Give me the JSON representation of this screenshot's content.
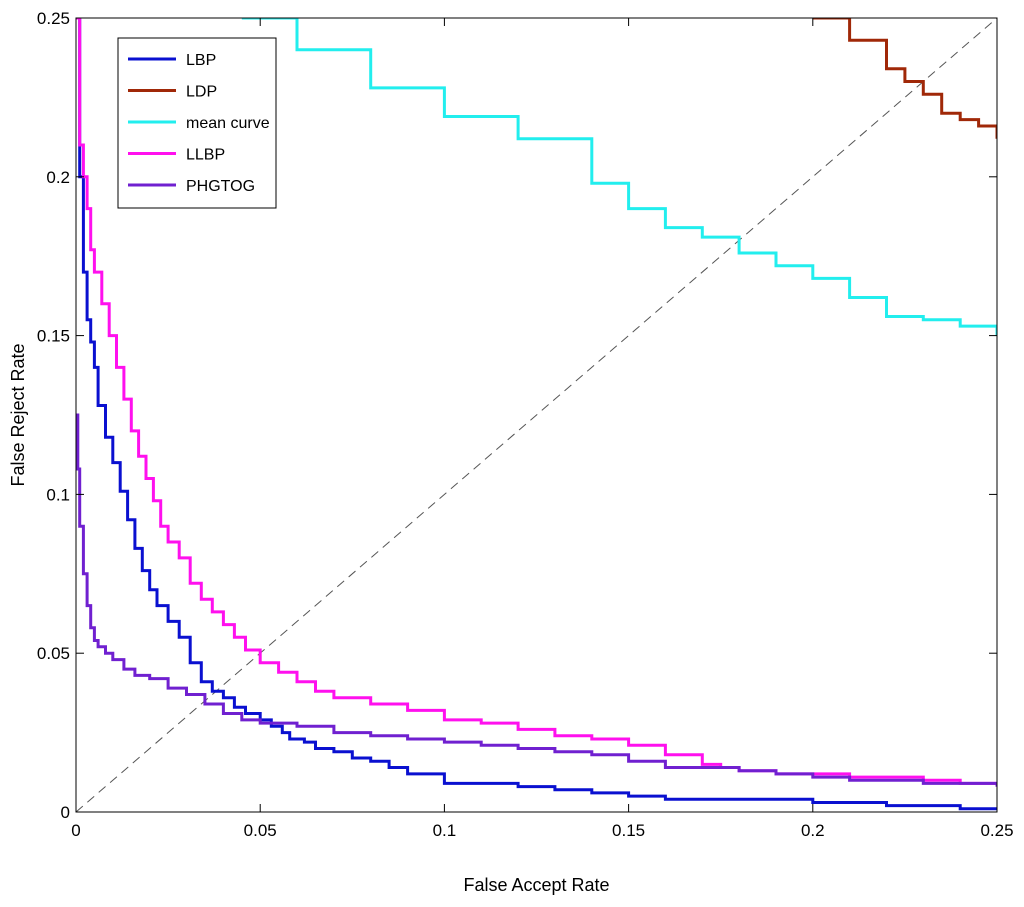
{
  "chart_data": {
    "type": "line",
    "title": "",
    "xlabel": "False Accept Rate",
    "ylabel": "False Reject Rate",
    "xlim": [
      0,
      0.25
    ],
    "ylim": [
      0,
      0.25
    ],
    "xticks": [
      0,
      0.05,
      0.1,
      0.15,
      0.2,
      0.25
    ],
    "yticks": [
      0,
      0.05,
      0.1,
      0.15,
      0.2,
      0.25
    ],
    "xtick_labels": [
      "0",
      "0.05",
      "0.1",
      "0.15",
      "0.2",
      "0.25"
    ],
    "ytick_labels": [
      "0",
      "0.05",
      "0.1",
      "0.15",
      "0.2",
      "0.25"
    ],
    "grid": false,
    "legend_position": "top-left",
    "reference_line": {
      "style": "dashed",
      "color": "#555555",
      "x": [
        0,
        0.25
      ],
      "y": [
        0,
        0.25
      ]
    },
    "series": [
      {
        "name": "LBP",
        "color": "#0a10d0",
        "x": [
          0,
          0.001,
          0.002,
          0.003,
          0.004,
          0.005,
          0.006,
          0.008,
          0.01,
          0.012,
          0.014,
          0.016,
          0.018,
          0.02,
          0.022,
          0.025,
          0.028,
          0.031,
          0.034,
          0.037,
          0.04,
          0.043,
          0.046,
          0.05,
          0.053,
          0.056,
          0.058,
          0.062,
          0.065,
          0.07,
          0.075,
          0.08,
          0.085,
          0.09,
          0.1,
          0.11,
          0.12,
          0.13,
          0.14,
          0.15,
          0.16,
          0.18,
          0.2,
          0.22,
          0.24,
          0.25
        ],
        "y": [
          0.25,
          0.2,
          0.17,
          0.155,
          0.148,
          0.14,
          0.128,
          0.118,
          0.11,
          0.101,
          0.092,
          0.083,
          0.076,
          0.07,
          0.065,
          0.06,
          0.055,
          0.047,
          0.041,
          0.038,
          0.036,
          0.033,
          0.031,
          0.029,
          0.027,
          0.025,
          0.023,
          0.022,
          0.02,
          0.019,
          0.017,
          0.016,
          0.014,
          0.012,
          0.009,
          0.009,
          0.008,
          0.007,
          0.006,
          0.005,
          0.004,
          0.004,
          0.003,
          0.002,
          0.001,
          0.001
        ]
      },
      {
        "name": "LDP",
        "color": "#a02808",
        "x": [
          0.2,
          0.21,
          0.22,
          0.225,
          0.23,
          0.235,
          0.24,
          0.245,
          0.25
        ],
        "y": [
          0.25,
          0.243,
          0.234,
          0.23,
          0.226,
          0.22,
          0.218,
          0.216,
          0.212
        ]
      },
      {
        "name": "mean curve",
        "color": "#22eeee",
        "x": [
          0.045,
          0.06,
          0.08,
          0.1,
          0.12,
          0.14,
          0.15,
          0.16,
          0.17,
          0.18,
          0.19,
          0.2,
          0.21,
          0.22,
          0.23,
          0.24,
          0.25
        ],
        "y": [
          0.25,
          0.24,
          0.228,
          0.219,
          0.212,
          0.198,
          0.19,
          0.184,
          0.181,
          0.176,
          0.172,
          0.168,
          0.162,
          0.156,
          0.155,
          0.153,
          0.15
        ]
      },
      {
        "name": "LLBP",
        "color": "#ff10ee",
        "x": [
          0,
          0.001,
          0.002,
          0.003,
          0.004,
          0.005,
          0.007,
          0.009,
          0.011,
          0.013,
          0.015,
          0.017,
          0.019,
          0.021,
          0.023,
          0.025,
          0.028,
          0.031,
          0.034,
          0.037,
          0.04,
          0.043,
          0.046,
          0.05,
          0.055,
          0.06,
          0.065,
          0.07,
          0.08,
          0.09,
          0.1,
          0.11,
          0.12,
          0.13,
          0.14,
          0.15,
          0.16,
          0.17,
          0.175,
          0.18,
          0.19,
          0.2,
          0.21,
          0.22,
          0.23,
          0.24,
          0.25
        ],
        "y": [
          0.25,
          0.21,
          0.2,
          0.19,
          0.177,
          0.17,
          0.16,
          0.15,
          0.14,
          0.13,
          0.12,
          0.112,
          0.105,
          0.098,
          0.09,
          0.085,
          0.08,
          0.072,
          0.067,
          0.063,
          0.059,
          0.055,
          0.051,
          0.047,
          0.044,
          0.041,
          0.038,
          0.036,
          0.034,
          0.032,
          0.029,
          0.028,
          0.026,
          0.024,
          0.023,
          0.021,
          0.018,
          0.015,
          0.014,
          0.013,
          0.012,
          0.012,
          0.011,
          0.011,
          0.01,
          0.009,
          0.008
        ]
      },
      {
        "name": "PHGTOG",
        "color": "#7020d0",
        "x": [
          0,
          0.0005,
          0.001,
          0.002,
          0.003,
          0.004,
          0.005,
          0.006,
          0.008,
          0.01,
          0.013,
          0.016,
          0.02,
          0.025,
          0.03,
          0.035,
          0.04,
          0.045,
          0.05,
          0.06,
          0.07,
          0.08,
          0.09,
          0.1,
          0.11,
          0.12,
          0.13,
          0.14,
          0.15,
          0.16,
          0.17,
          0.18,
          0.19,
          0.2,
          0.21,
          0.22,
          0.23,
          0.24,
          0.25
        ],
        "y": [
          0.125,
          0.108,
          0.09,
          0.075,
          0.065,
          0.058,
          0.054,
          0.052,
          0.05,
          0.048,
          0.045,
          0.043,
          0.042,
          0.039,
          0.037,
          0.034,
          0.031,
          0.029,
          0.028,
          0.027,
          0.025,
          0.024,
          0.023,
          0.022,
          0.021,
          0.02,
          0.019,
          0.018,
          0.016,
          0.014,
          0.014,
          0.013,
          0.012,
          0.011,
          0.01,
          0.01,
          0.009,
          0.009,
          0.008
        ]
      }
    ]
  }
}
